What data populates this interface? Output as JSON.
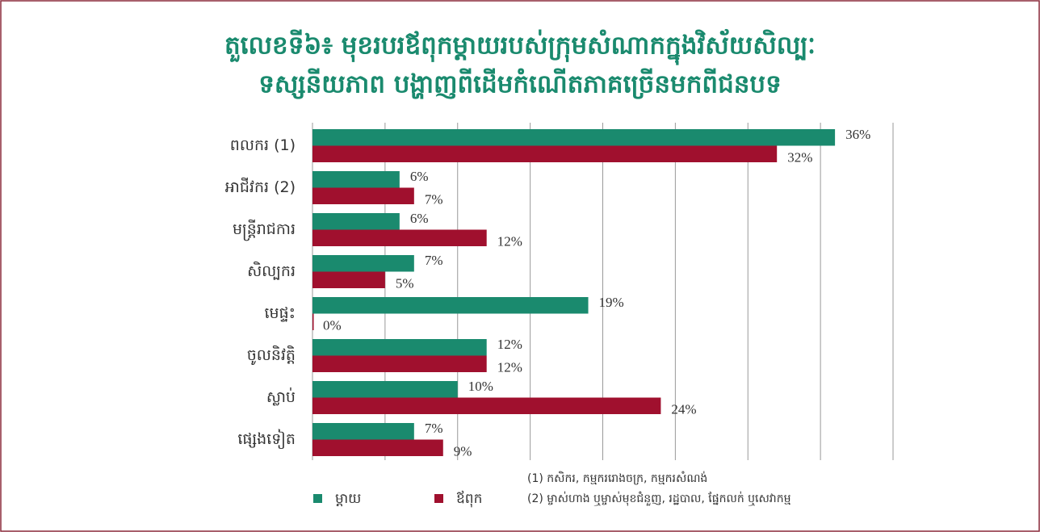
{
  "chart_data": {
    "type": "bar",
    "orientation": "horizontal",
    "title": [
      "តួលេខទី៦៖ មុខរបរឪពុកម្តាយរបស់ក្រុមសំណាកក្នុងវិស័យសិល្បៈ",
      "ទស្សនីយភាព បង្ហាញពីដើមកំណើតភាគច្រើនមកពីជនបទ"
    ],
    "categories": [
      "ពលករ (1)",
      "អាជីវករ (2)",
      "មន្ត្រីរាជការ",
      "សិល្បករ",
      "មេផ្ទះ",
      "ចូលនិវត្តិ",
      "ស្លាប់",
      "ផ្សេងទៀត"
    ],
    "series": [
      {
        "name": "ម្តាយ",
        "color": "#1a8a6e",
        "values": [
          36,
          6,
          6,
          7,
          19,
          12,
          10,
          7
        ],
        "value_labels": [
          "36%",
          "6%",
          "6%",
          "7%",
          "19%",
          "12%",
          "10%",
          "7%"
        ]
      },
      {
        "name": "ឪពុក",
        "color": "#a0102e",
        "values": [
          32,
          7,
          12,
          5,
          0,
          12,
          24,
          9
        ],
        "value_labels": [
          "32%",
          "7%",
          "12%",
          "5%",
          "0%",
          "12%",
          "24%",
          "9%"
        ]
      }
    ],
    "xlim": [
      0,
      40
    ],
    "xticks": [
      0,
      5,
      10,
      15,
      20,
      25,
      30,
      35,
      40
    ],
    "grid": true,
    "notes": [
      "(1) កសិករ, កម្មកររោងចក្រ, កម្មករសំណង់",
      "(2) ម្ចាស់ហាង ឬម្ចាស់មុខជំនួញ, រដ្ឋបាល, ផ្នែកលក់ ឬសេវាកម្ម"
    ]
  }
}
